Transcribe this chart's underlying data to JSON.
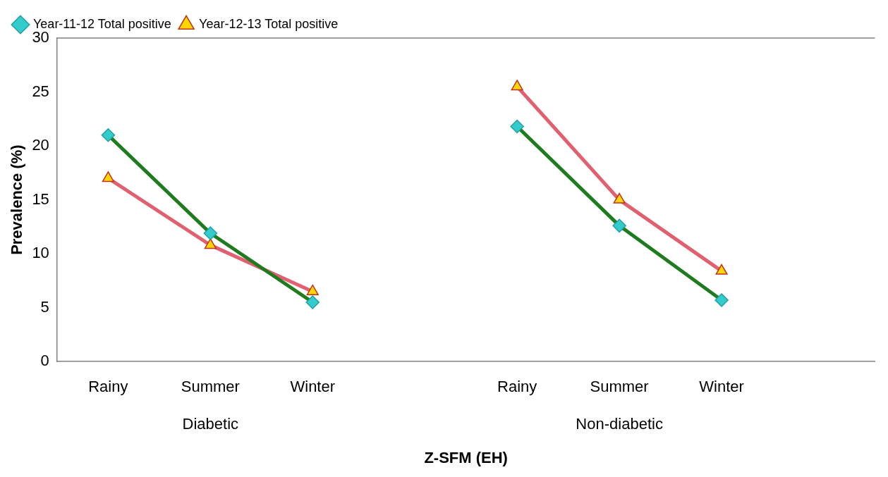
{
  "chart_data": {
    "type": "line",
    "xlabel": "Z-SFM (EH)",
    "ylabel": "Prevalence (%)",
    "categories": [
      "Rainy",
      "Summer",
      "Winter",
      null,
      "Rainy",
      "Summer",
      "Winter",
      null
    ],
    "series": [
      {
        "name": "Year-11-12 Total positive",
        "color": "#1e7b1e",
        "colors": [
          "#33cccc",
          "#33cccc",
          "#33cccc",
          null,
          "#33cccc",
          "#33cccc",
          "#33cccc",
          null
        ],
        "marker": "diamond",
        "values": [
          21.0,
          11.9,
          5.5,
          null,
          21.8,
          12.6,
          5.7,
          null
        ]
      },
      {
        "name": "Year-12-13 Total positive",
        "color": "#e06070",
        "colors": [
          "#ffd700",
          "#ffd700",
          "#ffd700",
          null,
          "#ffd700",
          "#ffd700",
          "#ffd700",
          null
        ],
        "marker": "triangle",
        "values": [
          17.0,
          10.8,
          6.5,
          null,
          25.5,
          15.0,
          8.4,
          null
        ]
      }
    ],
    "ylim": [
      0,
      30
    ],
    "yticks": [
      0,
      5,
      10,
      15,
      20,
      25,
      30
    ],
    "grid": false,
    "legend": "top left",
    "annotations": [
      "Diabetic",
      "Non-diabetic"
    ]
  }
}
